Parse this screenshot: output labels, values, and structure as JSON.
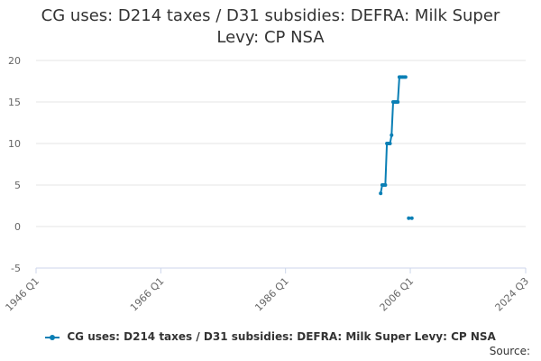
{
  "chart_data": {
    "type": "line",
    "title": "CG uses: D214 taxes / D31 subsidies: DEFRA: Milk Super Levy: CP NSA",
    "ylim": [
      -5,
      20
    ],
    "yticks": [
      "20",
      "15",
      "10",
      "5",
      "0",
      "-5"
    ],
    "xlim": [
      "1946 Q1",
      "2024 Q3"
    ],
    "xticks": [
      "1946 Q1",
      "1966 Q1",
      "1986 Q1",
      "2006 Q1",
      "2024 Q3"
    ],
    "grid": "horizontal",
    "legend_position": "bottom",
    "series": [
      {
        "name": "CG uses: D214 taxes / D31 subsidies: DEFRA: Milk Super Levy: CP NSA",
        "color": "#0a7fb5",
        "segments": [
          [
            {
              "x": "2001 Q2",
              "y": 4
            },
            {
              "x": "2001 Q3",
              "y": 5
            },
            {
              "x": "2001 Q4",
              "y": 5
            },
            {
              "x": "2002 Q1",
              "y": 5
            },
            {
              "x": "2002 Q2",
              "y": 10
            },
            {
              "x": "2002 Q3",
              "y": 10
            },
            {
              "x": "2002 Q4",
              "y": 10
            },
            {
              "x": "2003 Q1",
              "y": 11
            },
            {
              "x": "2003 Q2",
              "y": 15
            },
            {
              "x": "2003 Q3",
              "y": 15
            },
            {
              "x": "2003 Q4",
              "y": 15
            },
            {
              "x": "2004 Q1",
              "y": 15
            },
            {
              "x": "2004 Q2",
              "y": 18
            },
            {
              "x": "2004 Q3",
              "y": 18
            },
            {
              "x": "2004 Q4",
              "y": 18
            },
            {
              "x": "2005 Q1",
              "y": 18
            },
            {
              "x": "2005 Q2",
              "y": 18
            }
          ],
          [
            {
              "x": "2005 Q4",
              "y": 1
            },
            {
              "x": "2006 Q2",
              "y": 1
            }
          ]
        ]
      }
    ]
  },
  "footer": {
    "source_label": "Source:"
  }
}
